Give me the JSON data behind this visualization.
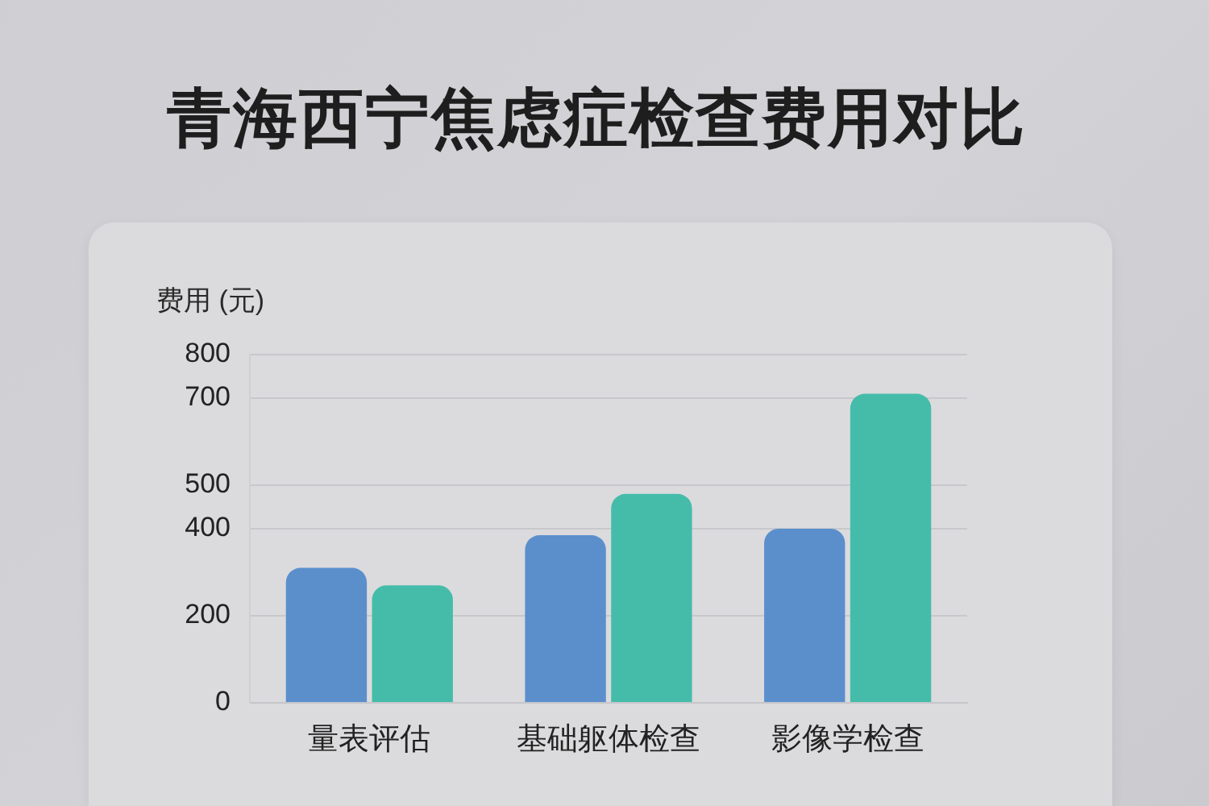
{
  "chart_data": {
    "type": "bar",
    "title": "青海西宁焦虑症检查费用对比",
    "ylabel": "费用 (元)",
    "categories": [
      "量表评估",
      "基础躯体检查",
      "影像学检查"
    ],
    "series": [
      {
        "color": "#5b8fcc",
        "values": [
          310,
          385,
          400
        ]
      },
      {
        "color": "#45bcaa",
        "values": [
          270,
          480,
          710
        ]
      }
    ],
    "ylim": [
      0,
      800
    ],
    "yticks": [
      0,
      200,
      400,
      500,
      700,
      800
    ],
    "grid": "y"
  }
}
